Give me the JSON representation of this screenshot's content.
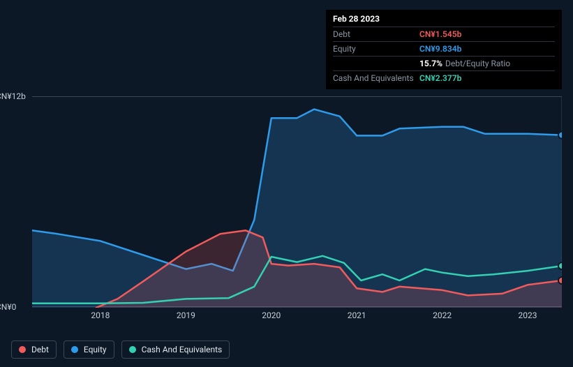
{
  "tooltip": {
    "date": "Feb 28 2023",
    "rows": [
      {
        "label": "Debt",
        "value": "CN¥1.545b",
        "color": "#f15b5b"
      },
      {
        "label": "Equity",
        "value": "CN¥9.834b",
        "color": "#2f9ceb"
      },
      {
        "label": "",
        "pct": "15.7%",
        "text": "Debt/Equity Ratio"
      },
      {
        "label": "Cash And Equivalents",
        "value": "CN¥2.377b",
        "color": "#35d0b3"
      }
    ]
  },
  "chart": {
    "type": "area",
    "background_color": "#0d1826",
    "grid_color": "#3a4754",
    "y_axis": {
      "min": 0,
      "max": 12,
      "ticks": [
        {
          "v": 12,
          "label": "CN¥12b"
        },
        {
          "v": 0,
          "label": "CN¥0"
        }
      ],
      "label_color": "#c5ced6",
      "label_fontsize": 12
    },
    "x_axis": {
      "min": 2017.2,
      "max": 2023.4,
      "ticks": [
        2018,
        2019,
        2020,
        2021,
        2022,
        2023
      ],
      "label_color": "#c5ced6",
      "label_fontsize": 12
    },
    "marker_line_x": 2023.4,
    "series": [
      {
        "name": "Equity",
        "color": "#2f9ceb",
        "fill_opacity": 0.22,
        "line_width": 2.5,
        "data": [
          [
            2017.2,
            4.4
          ],
          [
            2017.5,
            4.2
          ],
          [
            2018.0,
            3.8
          ],
          [
            2018.5,
            3.0
          ],
          [
            2019.0,
            2.2
          ],
          [
            2019.3,
            2.5
          ],
          [
            2019.55,
            2.1
          ],
          [
            2019.8,
            5.0
          ],
          [
            2020.0,
            10.8
          ],
          [
            2020.3,
            10.8
          ],
          [
            2020.5,
            11.3
          ],
          [
            2020.8,
            10.9
          ],
          [
            2021.0,
            9.8
          ],
          [
            2021.3,
            9.8
          ],
          [
            2021.5,
            10.2
          ],
          [
            2022.0,
            10.3
          ],
          [
            2022.25,
            10.3
          ],
          [
            2022.5,
            9.9
          ],
          [
            2023.0,
            9.9
          ],
          [
            2023.4,
            9.83
          ]
        ]
      },
      {
        "name": "Debt",
        "color": "#f15b5b",
        "fill_opacity": 0.2,
        "line_width": 2.5,
        "data": [
          [
            2017.95,
            0.0
          ],
          [
            2018.2,
            0.5
          ],
          [
            2018.5,
            1.5
          ],
          [
            2019.0,
            3.2
          ],
          [
            2019.4,
            4.2
          ],
          [
            2019.7,
            4.4
          ],
          [
            2019.9,
            4.0
          ],
          [
            2020.0,
            2.5
          ],
          [
            2020.2,
            2.4
          ],
          [
            2020.5,
            2.5
          ],
          [
            2020.8,
            2.3
          ],
          [
            2021.0,
            1.1
          ],
          [
            2021.3,
            0.9
          ],
          [
            2021.5,
            1.2
          ],
          [
            2022.0,
            1.0
          ],
          [
            2022.3,
            0.7
          ],
          [
            2022.7,
            0.8
          ],
          [
            2023.0,
            1.3
          ],
          [
            2023.4,
            1.55
          ]
        ]
      },
      {
        "name": "Cash And Equivalents",
        "color": "#35d0b3",
        "fill_opacity": 0.0,
        "line_width": 2.5,
        "data": [
          [
            2017.2,
            0.25
          ],
          [
            2018.0,
            0.25
          ],
          [
            2018.5,
            0.28
          ],
          [
            2019.0,
            0.5
          ],
          [
            2019.5,
            0.55
          ],
          [
            2019.8,
            1.2
          ],
          [
            2020.0,
            2.9
          ],
          [
            2020.3,
            2.6
          ],
          [
            2020.6,
            2.95
          ],
          [
            2020.85,
            2.55
          ],
          [
            2021.05,
            1.55
          ],
          [
            2021.3,
            1.9
          ],
          [
            2021.5,
            1.55
          ],
          [
            2021.8,
            2.2
          ],
          [
            2022.0,
            2.0
          ],
          [
            2022.3,
            1.8
          ],
          [
            2022.6,
            1.9
          ],
          [
            2023.0,
            2.1
          ],
          [
            2023.4,
            2.38
          ]
        ]
      }
    ],
    "end_markers": [
      {
        "series": "Equity",
        "color": "#2f9ceb"
      },
      {
        "series": "Debt",
        "color": "#f15b5b"
      },
      {
        "series": "Cash And Equivalents",
        "color": "#35d0b3"
      }
    ]
  },
  "legend": {
    "items": [
      {
        "label": "Debt",
        "color": "#f15b5b"
      },
      {
        "label": "Equity",
        "color": "#2f9ceb"
      },
      {
        "label": "Cash And Equivalents",
        "color": "#35d0b3"
      }
    ],
    "border_color": "#3a4754",
    "text_color": "#e1e7ec"
  }
}
